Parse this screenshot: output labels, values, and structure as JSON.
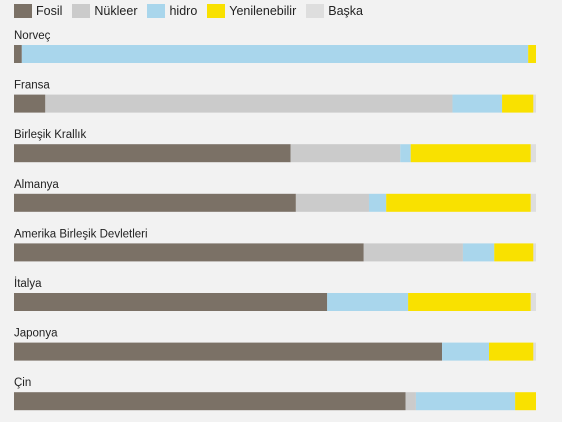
{
  "chart_data": {
    "type": "bar",
    "orientation": "horizontal",
    "stacked": true,
    "normalized_percent": true,
    "legend_position": "top-left",
    "grid": false,
    "xlim": [
      0,
      100
    ],
    "categories": [
      "Norveç",
      "Fransa",
      "Birleşik Krallık",
      "Almanya",
      "Amerika Birleşik Devletleri",
      "İtalya",
      "Japonya",
      "Çin"
    ],
    "series": [
      {
        "name": "Fosil",
        "color": "#7b7166",
        "values": [
          1.5,
          6,
          53,
          54,
          67,
          60,
          82,
          75
        ]
      },
      {
        "name": "Nükleer",
        "color": "#cbcbcb",
        "values": [
          0,
          78,
          21,
          14,
          19,
          0,
          0,
          2
        ]
      },
      {
        "name": "hidro",
        "color": "#a9d6ec",
        "values": [
          97,
          9.5,
          2,
          3.3,
          6,
          15.5,
          9,
          19
        ]
      },
      {
        "name": "Yenilenebilir",
        "color": "#f9e100",
        "values": [
          1.5,
          6,
          23,
          27.7,
          7.5,
          23.5,
          8.5,
          4
        ]
      },
      {
        "name": "Başka",
        "color": "#dedede",
        "values": [
          0,
          0.5,
          1,
          1,
          0.5,
          1,
          0.5,
          0
        ]
      }
    ]
  }
}
